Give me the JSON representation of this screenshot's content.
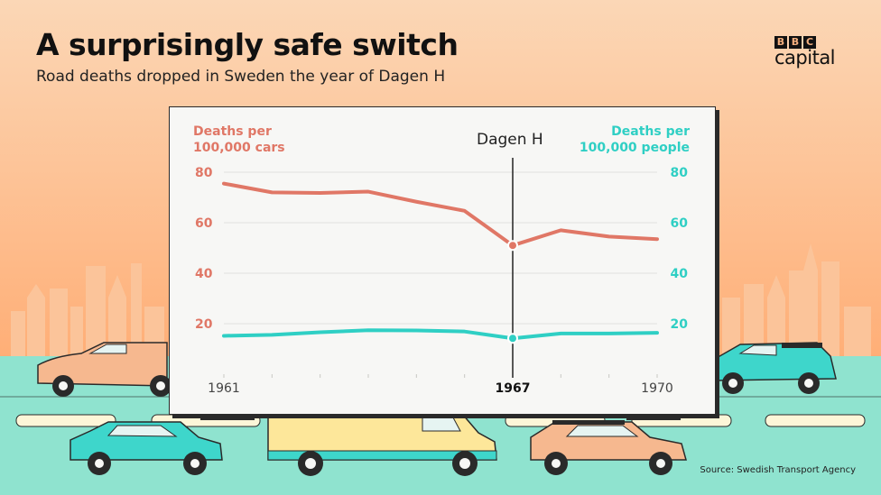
{
  "header": {
    "title": "A surprisingly safe switch",
    "subtitle": "Road deaths dropped in Sweden the year of Dagen H"
  },
  "logo": {
    "letters": [
      "B",
      "B",
      "C"
    ],
    "word": "capital"
  },
  "footer": {
    "source": "Source: Swedish Transport Agency"
  },
  "colors": {
    "sky_top": "#ffb98a",
    "sky_bottom": "#f9cba3",
    "road": "#8fe3cf",
    "cars_series": "#e07766",
    "people_series": "#2fcfc4"
  },
  "chart_data": {
    "type": "line",
    "x": [
      1961,
      1962,
      1963,
      1964,
      1965,
      1966,
      1967,
      1968,
      1969,
      1970
    ],
    "series": [
      {
        "name": "Deaths per 100,000 cars",
        "axis": "left",
        "color": "#e07766",
        "values": [
          75.5,
          72,
          71.8,
          72.3,
          68.3,
          64.7,
          51,
          57,
          54.5,
          53.5
        ]
      },
      {
        "name": "Deaths per 100,000 people",
        "axis": "right",
        "color": "#2fcfc4",
        "values": [
          15.2,
          15.6,
          16.6,
          17.4,
          17.3,
          16.9,
          14.2,
          16.1,
          16.1,
          16.4
        ]
      }
    ],
    "ylabel_left": "Deaths per\n100,000 cars",
    "ylabel_right": "Deaths per\n100,000 people",
    "ylim": [
      0,
      80
    ],
    "y_ticks": [
      20,
      40,
      60,
      80
    ],
    "x_tick_labels": [
      "1961",
      "1967",
      "1970"
    ],
    "highlight": {
      "x": 1967,
      "label": "Dagen H",
      "tick_label": "1967"
    },
    "grid": true
  }
}
